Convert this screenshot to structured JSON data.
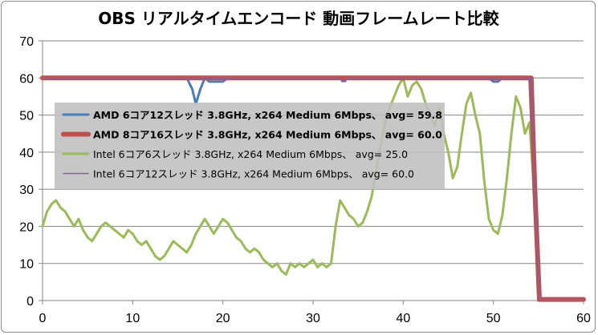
{
  "chart_data": {
    "type": "line",
    "title": "OBS リアルタイムエンコード 動画フレームレート比較",
    "xlim": [
      0,
      60
    ],
    "ylim": [
      0,
      70
    ],
    "x_ticks": [
      "0",
      "10",
      "20",
      "30",
      "40",
      "50",
      "60"
    ],
    "y_ticks": [
      "0",
      "10",
      "20",
      "30",
      "40",
      "50",
      "60",
      "70"
    ],
    "grid": {
      "horizontal": true,
      "vertical": false
    },
    "legend_position": "center-left",
    "series": [
      {
        "name": "AMD 6コア12スレッド 3.8GHz, x264 Medium 6Mbps、 avg= 59.8",
        "color": "#4a7ebb",
        "points": [
          [
            0,
            60
          ],
          [
            16,
            60
          ],
          [
            16.6,
            57
          ],
          [
            17,
            53
          ],
          [
            17.5,
            57
          ],
          [
            18,
            60
          ],
          [
            18.5,
            59
          ],
          [
            20,
            59
          ],
          [
            20.5,
            60
          ],
          [
            33,
            60
          ],
          [
            33.3,
            59.3
          ],
          [
            34,
            60
          ],
          [
            49.5,
            60
          ],
          [
            50,
            59
          ],
          [
            50.5,
            59
          ],
          [
            51,
            60
          ],
          [
            54,
            60
          ],
          [
            54.5,
            30
          ],
          [
            55,
            0
          ],
          [
            60,
            0
          ]
        ]
      },
      {
        "name": "AMD 8コア16スレッド 3.8GHz, x264 Medium 6Mbps、 avg= 60.0",
        "color": "#c0504d",
        "points": [
          [
            0,
            60
          ],
          [
            54.2,
            60
          ],
          [
            54.6,
            30
          ],
          [
            55.1,
            0.3
          ],
          [
            60,
            0.3
          ]
        ]
      },
      {
        "name": "Intel 6コア6スレッド 3.8GHz, x264 Medium 6Mbps、 avg= 25.0",
        "color": "#9bbb59",
        "points": [
          [
            0,
            20
          ],
          [
            0.5,
            24
          ],
          [
            1,
            26
          ],
          [
            1.5,
            27
          ],
          [
            2,
            25
          ],
          [
            2.5,
            24
          ],
          [
            3,
            22
          ],
          [
            3.5,
            20
          ],
          [
            4,
            22
          ],
          [
            4.5,
            19
          ],
          [
            5,
            17
          ],
          [
            5.5,
            16
          ],
          [
            6,
            18
          ],
          [
            6.5,
            20
          ],
          [
            7,
            21
          ],
          [
            7.5,
            20
          ],
          [
            8,
            19
          ],
          [
            8.5,
            18
          ],
          [
            9,
            17
          ],
          [
            9.5,
            19
          ],
          [
            10,
            18
          ],
          [
            10.5,
            16
          ],
          [
            11,
            15
          ],
          [
            11.5,
            16
          ],
          [
            12,
            14
          ],
          [
            12.5,
            12
          ],
          [
            13,
            11
          ],
          [
            13.5,
            12
          ],
          [
            14,
            14
          ],
          [
            14.5,
            16
          ],
          [
            15,
            15
          ],
          [
            15.5,
            14
          ],
          [
            16,
            13
          ],
          [
            16.5,
            15
          ],
          [
            17,
            18
          ],
          [
            17.5,
            20
          ],
          [
            18,
            22
          ],
          [
            18.5,
            20
          ],
          [
            19,
            18
          ],
          [
            19.5,
            20
          ],
          [
            20,
            22
          ],
          [
            20.5,
            21
          ],
          [
            21,
            19
          ],
          [
            21.5,
            17
          ],
          [
            22,
            16
          ],
          [
            22.5,
            14
          ],
          [
            23,
            13
          ],
          [
            23.5,
            14
          ],
          [
            24,
            13
          ],
          [
            24.5,
            11
          ],
          [
            25,
            10
          ],
          [
            25.5,
            9
          ],
          [
            26,
            10
          ],
          [
            26.5,
            8
          ],
          [
            27,
            7
          ],
          [
            27.5,
            10
          ],
          [
            28,
            9
          ],
          [
            28.5,
            10
          ],
          [
            29,
            9
          ],
          [
            29.5,
            10
          ],
          [
            30,
            11
          ],
          [
            30.5,
            9
          ],
          [
            31,
            10
          ],
          [
            31.5,
            9
          ],
          [
            32,
            10
          ],
          [
            32.5,
            20
          ],
          [
            33,
            27
          ],
          [
            33.5,
            25
          ],
          [
            34,
            23
          ],
          [
            34.5,
            22
          ],
          [
            35,
            20
          ],
          [
            35.5,
            21
          ],
          [
            36,
            24
          ],
          [
            36.5,
            28
          ],
          [
            37,
            35
          ],
          [
            37.5,
            42
          ],
          [
            38,
            48
          ],
          [
            38.5,
            52
          ],
          [
            39,
            55
          ],
          [
            39.5,
            58
          ],
          [
            40,
            60
          ],
          [
            40.5,
            55
          ],
          [
            41,
            58
          ],
          [
            41.5,
            59
          ],
          [
            42,
            57
          ],
          [
            42.5,
            53
          ],
          [
            43,
            50
          ],
          [
            43.5,
            47
          ],
          [
            44,
            52
          ],
          [
            44.5,
            45
          ],
          [
            45,
            40
          ],
          [
            45.5,
            33
          ],
          [
            46,
            36
          ],
          [
            46.5,
            45
          ],
          [
            47,
            53
          ],
          [
            47.5,
            56
          ],
          [
            48,
            50
          ],
          [
            48.5,
            45
          ],
          [
            49,
            32
          ],
          [
            49.5,
            22
          ],
          [
            50,
            19
          ],
          [
            50.5,
            18
          ],
          [
            51,
            23
          ],
          [
            51.5,
            33
          ],
          [
            52,
            45
          ],
          [
            52.5,
            55
          ],
          [
            53,
            52
          ],
          [
            53.5,
            45
          ],
          [
            54,
            48
          ],
          [
            54.5,
            30
          ],
          [
            55,
            0
          ],
          [
            60,
            0
          ]
        ]
      },
      {
        "name": "Intel 6コア12スレッド 3.8GHz, x264 Medium 6Mbps、 avg= 60.0",
        "color": "#8064a2",
        "points": [
          [
            0,
            60
          ],
          [
            33,
            60
          ],
          [
            33.2,
            59
          ],
          [
            33.6,
            59
          ],
          [
            33.8,
            60
          ],
          [
            54.2,
            60
          ],
          [
            54.6,
            30
          ],
          [
            55.1,
            0.3
          ],
          [
            60,
            0.3
          ]
        ]
      }
    ]
  }
}
